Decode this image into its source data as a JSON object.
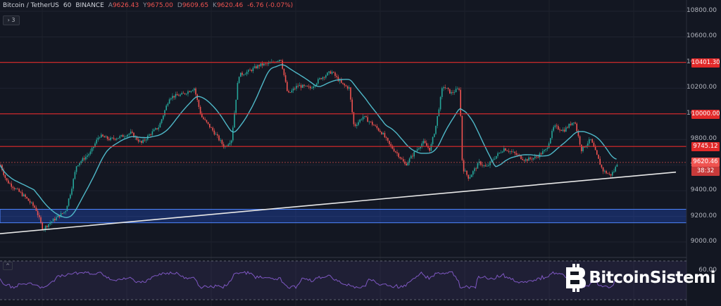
{
  "header": {
    "symbol": "Bitcoin / TetherUS",
    "interval": "60",
    "exchange": "BINANCE",
    "ohlc": [
      {
        "label": "A",
        "value": "9626.43"
      },
      {
        "label": "Y",
        "value": "9675.00"
      },
      {
        "label": "D",
        "value": "9609.65"
      },
      {
        "label": "K",
        "value": "9620.46"
      }
    ],
    "change": "-6.76 (-0.07%)"
  },
  "indicator_toggle": "3",
  "rsi_toggle": "^",
  "watermark": "BitcoinSistemi",
  "colors": {
    "background": "#131722",
    "up": "#26a69a",
    "down": "#ef5350",
    "ma": "#4fb8c8",
    "hline": "#e22a2a",
    "zone": "#2962ff",
    "rsi": "#7e57c2"
  },
  "icons": {
    "watermark": "bitcoin-icon"
  },
  "chart_data": {
    "type": "candlestick",
    "symbol": "Bitcoin / TetherUS",
    "interval": "60",
    "ylim": [
      8900,
      10900
    ],
    "y_ticks": [
      "10800.00",
      "10600.00",
      "10400.00",
      "10200.00",
      "10000.00",
      "9800.00",
      "9600.00",
      "9400.00",
      "9200.00",
      "9000.00"
    ],
    "tick_values": [
      10800,
      10600,
      10400,
      10200,
      10000,
      9800,
      9600,
      9400,
      9200,
      9000
    ],
    "horizontal_lines": [
      {
        "value": 10401.3,
        "label": "10401.30"
      },
      {
        "value": 10000.0,
        "label": "10000.00"
      },
      {
        "value": 9745.12,
        "label": "9745.12"
      }
    ],
    "last_price": {
      "value": 9620.46,
      "label": "9620.46",
      "countdown": "38:32"
    },
    "support_zone": [
      9150,
      9255
    ],
    "trendline": {
      "start": [
        0,
        9065
      ],
      "end": [
        960,
        9545
      ]
    },
    "price_anchors": [
      [
        0,
        9600
      ],
      [
        8,
        9480
      ],
      [
        20,
        9420
      ],
      [
        35,
        9350
      ],
      [
        50,
        9260
      ],
      [
        60,
        9100
      ],
      [
        70,
        9150
      ],
      [
        82,
        9200
      ],
      [
        92,
        9240
      ],
      [
        100,
        9400
      ],
      [
        108,
        9600
      ],
      [
        118,
        9650
      ],
      [
        128,
        9700
      ],
      [
        140,
        9830
      ],
      [
        155,
        9800
      ],
      [
        170,
        9820
      ],
      [
        185,
        9850
      ],
      [
        200,
        9770
      ],
      [
        212,
        9840
      ],
      [
        225,
        9900
      ],
      [
        240,
        10130
      ],
      [
        258,
        10150
      ],
      [
        275,
        10200
      ],
      [
        285,
        9980
      ],
      [
        300,
        9880
      ],
      [
        318,
        9740
      ],
      [
        328,
        9800
      ],
      [
        338,
        10300
      ],
      [
        352,
        10330
      ],
      [
        368,
        10380
      ],
      [
        382,
        10390
      ],
      [
        398,
        10430
      ],
      [
        408,
        10150
      ],
      [
        422,
        10220
      ],
      [
        440,
        10200
      ],
      [
        455,
        10280
      ],
      [
        470,
        10330
      ],
      [
        485,
        10230
      ],
      [
        495,
        10200
      ],
      [
        502,
        9900
      ],
      [
        515,
        9980
      ],
      [
        528,
        9920
      ],
      [
        542,
        9850
      ],
      [
        552,
        9760
      ],
      [
        565,
        9680
      ],
      [
        575,
        9600
      ],
      [
        588,
        9700
      ],
      [
        600,
        9780
      ],
      [
        610,
        9720
      ],
      [
        618,
        9900
      ],
      [
        628,
        10220
      ],
      [
        640,
        10160
      ],
      [
        652,
        10200
      ],
      [
        656,
        9580
      ],
      [
        665,
        9500
      ],
      [
        680,
        9620
      ],
      [
        690,
        9580
      ],
      [
        700,
        9650
      ],
      [
        715,
        9730
      ],
      [
        730,
        9690
      ],
      [
        745,
        9640
      ],
      [
        760,
        9660
      ],
      [
        775,
        9720
      ],
      [
        786,
        9900
      ],
      [
        800,
        9870
      ],
      [
        815,
        9950
      ],
      [
        825,
        9720
      ],
      [
        838,
        9800
      ],
      [
        845,
        9700
      ],
      [
        855,
        9560
      ],
      [
        866,
        9520
      ],
      [
        872,
        9560
      ],
      [
        876,
        9620
      ]
    ],
    "rsi_ticks": [
      "60.00"
    ]
  }
}
